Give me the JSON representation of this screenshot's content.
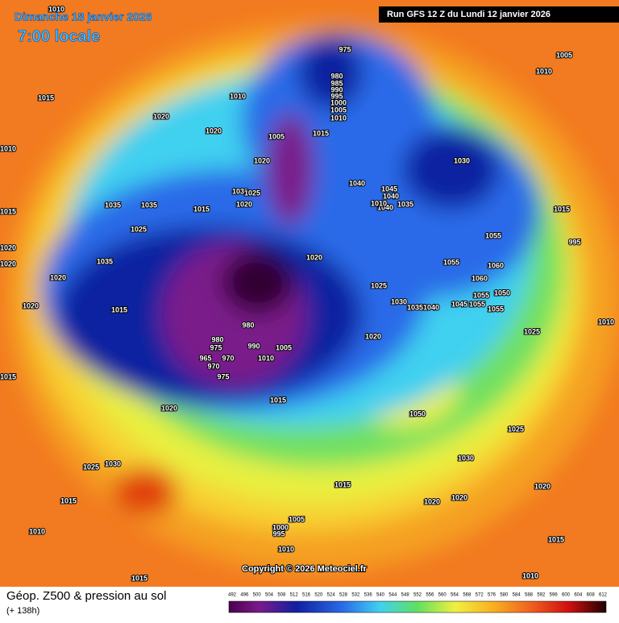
{
  "header": {
    "date": "Dimanche 18 janvier 2026",
    "time": "7:00 locale",
    "run": "Run GFS 12 Z du Lundi 12 janvier 2026"
  },
  "copyright": "Copyright © 2026 Meteociel.fr",
  "footer": {
    "title": "Géop. Z500 & pression au sol",
    "lead": "(+ 138h)"
  },
  "legend": {
    "ticks": [
      492,
      496,
      500,
      504,
      508,
      512,
      516,
      520,
      524,
      528,
      532,
      536,
      540,
      544,
      548,
      552,
      556,
      560,
      564,
      568,
      572,
      576,
      580,
      584,
      588,
      592,
      596,
      600,
      604,
      608,
      612
    ]
  },
  "pressure_labels": [
    975,
    980,
    985,
    990,
    995,
    1000,
    1005,
    1010,
    1015,
    1010,
    1020,
    1020,
    1005,
    1020,
    1030,
    1025,
    1020,
    1015,
    1035,
    1035,
    1025,
    1035,
    1020,
    1020,
    1015,
    1015,
    1010,
    1010,
    1015,
    1020,
    1020,
    1015,
    1040,
    1045,
    1040,
    1040,
    1035,
    1030,
    1010,
    1020,
    1025,
    1030,
    1035,
    1040,
    1045,
    1055,
    1055,
    1060,
    1060,
    1055,
    1050,
    1055,
    1055,
    980,
    980,
    975,
    965,
    970,
    970,
    975,
    990,
    1005,
    1010,
    1015,
    1020,
    1020,
    1050,
    1025,
    1030,
    1020,
    1020,
    1015,
    1005,
    1000,
    995,
    1010,
    1025,
    1030,
    1015,
    1010,
    1015,
    1010,
    1015,
    1020,
    1025,
    995,
    1015,
    1005,
    1010,
    1010
  ]
}
